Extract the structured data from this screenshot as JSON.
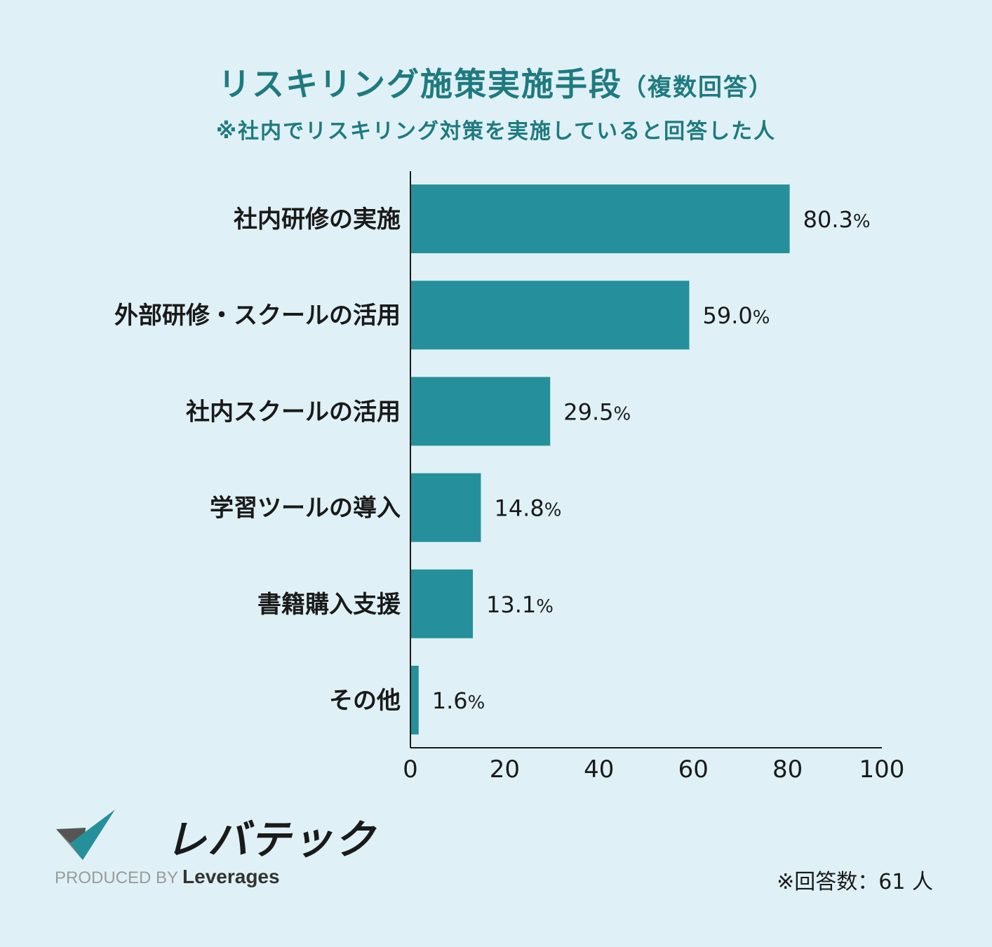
{
  "header": {
    "title": "リスキリング施策実施手段",
    "title_paren": "（複数回答）",
    "subtitle": "※社内でリスキリング対策を実施していると回答した人"
  },
  "chart_data": {
    "type": "bar",
    "orientation": "horizontal",
    "categories": [
      "社内研修の実施",
      "外部研修・スクールの活用",
      "社内スクールの活用",
      "学習ツールの導入",
      "書籍購入支援",
      "その他"
    ],
    "values": [
      80.3,
      59.0,
      29.5,
      14.8,
      13.1,
      1.6
    ],
    "value_labels": [
      "80.3",
      "59.0",
      "29.5",
      "14.8",
      "13.1",
      "1.6"
    ],
    "value_suffix": "%",
    "xlim": [
      0,
      100
    ],
    "xticks": [
      "0",
      "20",
      "40",
      "60",
      "80",
      "100"
    ],
    "bar_color": "#25909b"
  },
  "footer": {
    "logo_text": "レバテック",
    "produced_by": "PRODUCED BY",
    "brand": "Leverages",
    "respondents": "※回答数：61 人"
  },
  "colors": {
    "accent": "#1f7a80",
    "background": "#dff1f6",
    "logo_dark": "#555555",
    "logo_teal": "#25909b"
  }
}
